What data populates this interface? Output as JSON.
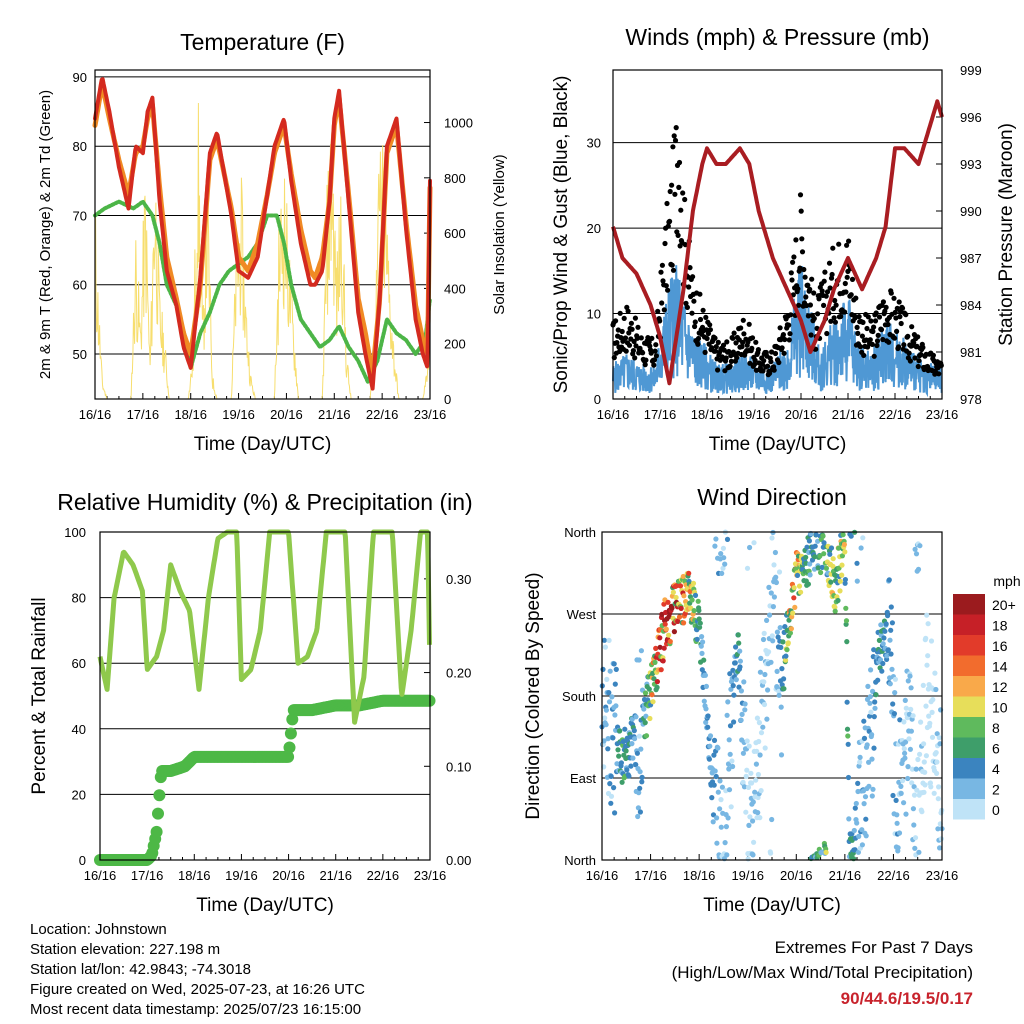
{
  "chart_data": [
    {
      "type": "line",
      "title": "Temperature (F)",
      "xlabel": "Time (Day/UTC)",
      "ylabel": "2m & 9m T (Red, Orange) & 2m Td (Green)",
      "y2label": "Solar Insolation (Yellow)",
      "x_ticks": [
        "16/16",
        "17/16",
        "18/16",
        "19/16",
        "20/16",
        "21/16",
        "22/16",
        "23/16"
      ],
      "ylim": [
        43.5,
        91
      ],
      "y_ticks": [
        50,
        60,
        70,
        80,
        90
      ],
      "y2lim": [
        0,
        1190
      ],
      "y2_ticks": [
        0,
        200,
        400,
        600,
        800,
        1000
      ],
      "grid": "horizontal",
      "colors": {
        "t2m": "#d42a1f",
        "t9m": "#f08a24",
        "td2m": "#4cb547",
        "solar": "#f7de6e"
      },
      "series": [
        {
          "name": "2m T",
          "x": [
            0,
            0.15,
            0.3,
            0.5,
            0.7,
            0.85,
            1.0,
            1.1,
            1.2,
            1.35,
            1.5,
            1.7,
            1.85,
            2.0,
            2.2,
            2.4,
            2.55,
            2.7,
            2.85,
            3.0,
            3.2,
            3.4,
            3.6,
            3.75,
            3.95,
            4.1,
            4.3,
            4.5,
            4.6,
            4.75,
            4.9,
            5.0,
            5.1,
            5.3,
            5.5,
            5.65,
            5.8,
            5.95,
            6.1,
            6.3,
            6.5,
            6.7,
            6.85,
            6.95,
            7.0
          ],
          "values": [
            84,
            90,
            85,
            77,
            71,
            80,
            79,
            85,
            87,
            72,
            62,
            57,
            51,
            48,
            61,
            79,
            82,
            76,
            70,
            62,
            61,
            64,
            73,
            80,
            84,
            75,
            66,
            60,
            60,
            62,
            72,
            84,
            88,
            72,
            56,
            50,
            45,
            58,
            80,
            84,
            68,
            55,
            50,
            48,
            75
          ]
        },
        {
          "name": "9m T",
          "x": [
            0,
            0.15,
            0.3,
            0.5,
            0.7,
            0.85,
            1.0,
            1.1,
            1.2,
            1.35,
            1.5,
            1.7,
            1.85,
            2.0,
            2.2,
            2.4,
            2.55,
            2.7,
            2.85,
            3.0,
            3.2,
            3.4,
            3.6,
            3.75,
            3.95,
            4.1,
            4.3,
            4.5,
            4.6,
            4.75,
            4.9,
            5.0,
            5.1,
            5.3,
            5.5,
            5.65,
            5.8,
            5.95,
            6.1,
            6.3,
            6.5,
            6.7,
            6.85,
            6.95,
            7.0
          ],
          "values": [
            83,
            89,
            84,
            78,
            73,
            79,
            80,
            84,
            86,
            74,
            64,
            58,
            53,
            50,
            60,
            78,
            81,
            76,
            71,
            64,
            62,
            66,
            73,
            79,
            83,
            76,
            68,
            62,
            61,
            64,
            72,
            83,
            87,
            73,
            58,
            53,
            47,
            58,
            79,
            83,
            69,
            57,
            52,
            50,
            74
          ]
        },
        {
          "name": "2m Td",
          "x": [
            0,
            0.2,
            0.5,
            0.8,
            1.0,
            1.2,
            1.35,
            1.5,
            1.7,
            1.9,
            2.0,
            2.2,
            2.4,
            2.6,
            2.8,
            3.0,
            3.2,
            3.4,
            3.6,
            3.8,
            3.95,
            4.1,
            4.3,
            4.5,
            4.7,
            4.9,
            5.1,
            5.3,
            5.5,
            5.7,
            5.9,
            6.1,
            6.3,
            6.5,
            6.7,
            6.9,
            7.0
          ],
          "values": [
            70,
            71,
            72,
            71,
            72,
            70,
            66,
            60,
            57,
            52,
            48,
            53,
            56,
            60,
            62,
            63,
            64,
            66,
            70,
            70,
            66,
            60,
            55,
            53,
            51,
            52,
            54,
            51,
            49,
            46,
            49,
            55,
            53,
            52,
            50,
            52,
            58
          ]
        },
        {
          "name": "Solar Insolation",
          "axis": "right",
          "x": [
            0,
            0.05,
            0.15,
            0.25,
            0.35,
            0.45,
            0.55,
            0.65,
            0.75,
            0.85,
            0.95,
            1.05,
            1.15,
            1.25,
            1.35,
            1.45,
            1.55,
            1.65,
            1.75,
            1.85,
            1.95,
            2.05,
            2.15,
            2.25,
            2.35,
            2.45,
            2.55,
            2.65,
            2.75,
            2.85,
            2.95,
            3.05,
            3.15,
            3.25,
            3.35,
            3.45,
            3.55,
            3.65,
            3.75,
            3.85,
            3.95,
            4.05,
            4.15,
            4.25,
            4.35,
            4.45,
            4.55,
            4.65,
            4.75,
            4.85,
            4.95,
            5.05,
            5.15,
            5.25,
            5.35,
            5.45,
            5.55,
            5.65,
            5.75,
            5.85,
            5.95,
            6.05,
            6.15,
            6.25,
            6.35,
            6.45,
            6.55,
            6.65,
            6.75,
            6.85,
            6.95,
            7.0
          ],
          "values": [
            780,
            500,
            80,
            0,
            0,
            0,
            0,
            0,
            0,
            650,
            300,
            900,
            150,
            1000,
            400,
            250,
            0,
            0,
            0,
            0,
            0,
            200,
            1180,
            300,
            900,
            100,
            0,
            0,
            0,
            0,
            600,
            850,
            400,
            100,
            0,
            0,
            0,
            0,
            0,
            700,
            900,
            600,
            300,
            0,
            0,
            0,
            0,
            0,
            0,
            800,
            1100,
            500,
            900,
            200,
            0,
            0,
            0,
            0,
            0,
            300,
            1000,
            900,
            500,
            200,
            0,
            0,
            0,
            0,
            0,
            0,
            150,
            300
          ]
        }
      ]
    },
    {
      "type": "scatter",
      "title": "Winds (mph) & Pressure (mb)",
      "xlabel": "Time (Day/UTC)",
      "ylabel": "Sonic/Prop Wind & Gust (Blue, Black)",
      "y2label": "Station Pressure (Maroon)",
      "x_ticks": [
        "16/16",
        "17/16",
        "18/16",
        "19/16",
        "20/16",
        "21/16",
        "22/16",
        "23/16"
      ],
      "ylim": [
        0,
        38.5
      ],
      "y_ticks": [
        0,
        10,
        20,
        30
      ],
      "y2lim": [
        978,
        999
      ],
      "y2_ticks": [
        978,
        981,
        984,
        987,
        990,
        993,
        996,
        999
      ],
      "grid": "horizontal",
      "colors": {
        "wind": "#4f98d4",
        "gust": "#000000",
        "pressure": "#a91d22"
      },
      "series": [
        {
          "name": "Wind",
          "x": [
            0,
            0.3,
            0.6,
            0.9,
            1.1,
            1.3,
            1.5,
            1.7,
            1.9,
            2.2,
            2.5,
            2.8,
            3.1,
            3.4,
            3.7,
            4.0,
            4.2,
            4.4,
            4.7,
            5.0,
            5.2,
            5.5,
            5.8,
            6.1,
            6.4,
            6.7,
            7.0
          ],
          "values": [
            3,
            4,
            3,
            3,
            8,
            12,
            9,
            6,
            5,
            3,
            3,
            4,
            3,
            3,
            5,
            12,
            8,
            4,
            7,
            9,
            5,
            4,
            7,
            6,
            4,
            3,
            3
          ]
        },
        {
          "name": "Gust",
          "x": [
            0,
            0.3,
            0.6,
            0.9,
            1.1,
            1.3,
            1.4,
            1.5,
            1.7,
            1.9,
            2.2,
            2.5,
            2.8,
            3.1,
            3.4,
            3.7,
            4.0,
            4.1,
            4.3,
            4.7,
            5.0,
            5.2,
            5.5,
            5.8,
            6.1,
            6.4,
            6.7,
            7.0
          ],
          "values": [
            8,
            10,
            7,
            6,
            18,
            27,
            36,
            22,
            13,
            10,
            6,
            6,
            9,
            5,
            5,
            10,
            22,
            17,
            10,
            16,
            18,
            10,
            8,
            12,
            10,
            7,
            5,
            4
          ]
        },
        {
          "name": "Station Pressure",
          "axis": "right",
          "x": [
            0,
            0.2,
            0.5,
            0.8,
            1.0,
            1.2,
            1.5,
            1.7,
            1.9,
            2.0,
            2.2,
            2.4,
            2.7,
            2.9,
            3.1,
            3.4,
            3.7,
            4.0,
            4.2,
            4.5,
            4.7,
            5.0,
            5.3,
            5.6,
            5.8,
            6.0,
            6.2,
            6.5,
            6.7,
            6.9,
            7.0
          ],
          "values": [
            989,
            987,
            986,
            984,
            982,
            979,
            985,
            990,
            993,
            994,
            993,
            993,
            994,
            993,
            990,
            987,
            985,
            983,
            981,
            983,
            985,
            987,
            985,
            987,
            989,
            994,
            994,
            993,
            995,
            997,
            996
          ]
        }
      ]
    },
    {
      "type": "line",
      "title": "Relative Humidity (%) & Precipitation (in)",
      "xlabel": "Time (Day/UTC)",
      "ylabel": "Percent & Total Rainfall",
      "x_ticks": [
        "16/16",
        "17/16",
        "18/16",
        "19/16",
        "20/16",
        "21/16",
        "22/16",
        "23/16"
      ],
      "ylim": [
        0,
        100
      ],
      "y_ticks": [
        0,
        20,
        40,
        60,
        80,
        100
      ],
      "y2lim": [
        0,
        0.35
      ],
      "y2_ticks": [
        "0.00",
        "0.10",
        "0.20",
        "0.30"
      ],
      "grid": "horizontal",
      "colors": {
        "rh": "#8fc94c",
        "precip": "#4db846"
      },
      "series": [
        {
          "name": "Relative Humidity",
          "x": [
            0,
            0.15,
            0.3,
            0.5,
            0.7,
            0.9,
            1.0,
            1.2,
            1.35,
            1.5,
            1.7,
            1.9,
            2.1,
            2.3,
            2.5,
            2.7,
            2.9,
            3.0,
            3.2,
            3.4,
            3.6,
            3.8,
            4.0,
            4.2,
            4.4,
            4.6,
            4.8,
            5.0,
            5.2,
            5.4,
            5.6,
            5.8,
            6.0,
            6.2,
            6.4,
            6.6,
            6.8,
            6.95,
            7.0
          ],
          "values": [
            62,
            52,
            80,
            94,
            90,
            82,
            58,
            62,
            70,
            90,
            82,
            76,
            52,
            80,
            98,
            100,
            100,
            55,
            58,
            70,
            100,
            100,
            100,
            60,
            62,
            70,
            100,
            100,
            100,
            42,
            56,
            100,
            100,
            100,
            50,
            70,
            100,
            100,
            57
          ]
        },
        {
          "name": "Total Precipitation",
          "axis": "right",
          "x": [
            0,
            0.5,
            1.0,
            1.1,
            1.2,
            1.3,
            1.5,
            1.8,
            2.0,
            2.5,
            3.0,
            3.5,
            4.0,
            4.1,
            4.5,
            5.0,
            5.5,
            6.0,
            6.5,
            7.0
          ],
          "values": [
            0.0,
            0.0,
            0.0,
            0.005,
            0.03,
            0.095,
            0.095,
            0.1,
            0.11,
            0.11,
            0.11,
            0.11,
            0.11,
            0.16,
            0.16,
            0.165,
            0.165,
            0.17,
            0.17,
            0.17
          ]
        }
      ]
    },
    {
      "type": "scatter",
      "title": "Wind Direction",
      "xlabel": "Time (Day/UTC)",
      "ylabel": "Direction (Colored By Speed)",
      "x_ticks": [
        "16/16",
        "17/16",
        "18/16",
        "19/16",
        "20/16",
        "21/16",
        "22/16",
        "23/16"
      ],
      "y_ticks": [
        "North",
        "East",
        "South",
        "West",
        "North"
      ],
      "ylim": [
        0,
        360
      ],
      "grid": "horizontal",
      "colorbar": {
        "title": "mph",
        "labels": [
          "20+",
          "18",
          "16",
          "14",
          "12",
          "10",
          "8",
          "6",
          "4",
          "2",
          "0"
        ],
        "colors": [
          "#9b1b1e",
          "#c62027",
          "#e23b2a",
          "#f26c2d",
          "#f9a94a",
          "#e7de5a",
          "#5fba5d",
          "#3e9e6a",
          "#3b84bf",
          "#78b7e3",
          "#bfe3f7"
        ]
      },
      "points": [
        {
          "x": 0.1,
          "dir": 170,
          "spd": 3
        },
        {
          "x": 0.3,
          "dir": 120,
          "spd": 4
        },
        {
          "x": 0.4,
          "dir": 110,
          "spd": 6
        },
        {
          "x": 0.6,
          "dir": 125,
          "spd": 5
        },
        {
          "x": 0.8,
          "dir": 140,
          "spd": 3
        },
        {
          "x": 1.0,
          "dir": 185,
          "spd": 9
        },
        {
          "x": 1.1,
          "dir": 210,
          "spd": 13
        },
        {
          "x": 1.2,
          "dir": 230,
          "spd": 15
        },
        {
          "x": 1.3,
          "dir": 260,
          "spd": 18
        },
        {
          "x": 1.45,
          "dir": 270,
          "spd": 15
        },
        {
          "x": 1.6,
          "dir": 280,
          "spd": 13
        },
        {
          "x": 1.8,
          "dir": 300,
          "spd": 11
        },
        {
          "x": 2.0,
          "dir": 250,
          "spd": 6
        },
        {
          "x": 2.1,
          "dir": 200,
          "spd": 4
        },
        {
          "x": 2.3,
          "dir": 60,
          "spd": 4
        },
        {
          "x": 2.5,
          "dir": 20,
          "spd": 2
        },
        {
          "x": 2.8,
          "dir": 240,
          "spd": 5
        },
        {
          "x": 3.0,
          "dir": 30,
          "spd": 2
        },
        {
          "x": 3.2,
          "dir": 90,
          "spd": 2
        },
        {
          "x": 3.5,
          "dir": 320,
          "spd": 2
        },
        {
          "x": 3.7,
          "dir": 200,
          "spd": 4
        },
        {
          "x": 3.9,
          "dir": 280,
          "spd": 13
        },
        {
          "x": 4.0,
          "dir": 310,
          "spd": 11
        },
        {
          "x": 4.2,
          "dir": 330,
          "spd": 6
        },
        {
          "x": 4.4,
          "dir": 340,
          "spd": 5
        },
        {
          "x": 4.6,
          "dir": 350,
          "spd": 7
        },
        {
          "x": 4.8,
          "dir": 300,
          "spd": 10
        },
        {
          "x": 5.0,
          "dir": 350,
          "spd": 8
        },
        {
          "x": 5.1,
          "dir": 10,
          "spd": 6
        },
        {
          "x": 5.3,
          "dir": 40,
          "spd": 3
        },
        {
          "x": 5.5,
          "dir": 120,
          "spd": 3
        },
        {
          "x": 5.7,
          "dir": 230,
          "spd": 5
        },
        {
          "x": 5.9,
          "dir": 250,
          "spd": 4
        },
        {
          "x": 6.1,
          "dir": 50,
          "spd": 3
        },
        {
          "x": 6.3,
          "dir": 150,
          "spd": 2
        },
        {
          "x": 6.5,
          "dir": 30,
          "spd": 2
        },
        {
          "x": 6.7,
          "dir": 200,
          "spd": 1
        },
        {
          "x": 6.9,
          "dir": 100,
          "spd": 2
        }
      ]
    }
  ],
  "info": {
    "location": "Location: Johnstown",
    "elevation": "Station elevation: 227.198 m",
    "latlon": "Station lat/lon: 42.9843; -74.3018",
    "created": "Figure created on Wed, 2025-07-23, at 16:26 UTC",
    "latest": "Most recent data timestamp: 2025/07/23 16:15:00"
  },
  "extremes": {
    "title": "Extremes For Past 7 Days",
    "subtitle": "(High/Low/Max Wind/Total Precipitation)",
    "values": "90/44.6/19.5/0.17"
  }
}
